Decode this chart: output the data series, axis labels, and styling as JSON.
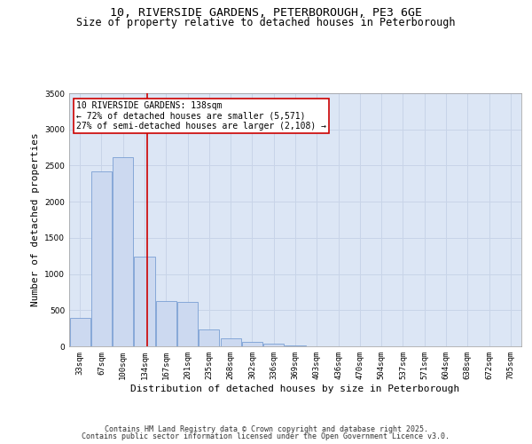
{
  "title_line1": "10, RIVERSIDE GARDENS, PETERBOROUGH, PE3 6GE",
  "title_line2": "Size of property relative to detached houses in Peterborough",
  "xlabel": "Distribution of detached houses by size in Peterborough",
  "ylabel": "Number of detached properties",
  "categories": [
    "33sqm",
    "67sqm",
    "100sqm",
    "134sqm",
    "167sqm",
    "201sqm",
    "235sqm",
    "268sqm",
    "302sqm",
    "336sqm",
    "369sqm",
    "403sqm",
    "436sqm",
    "470sqm",
    "504sqm",
    "537sqm",
    "571sqm",
    "604sqm",
    "638sqm",
    "672sqm",
    "705sqm"
  ],
  "values": [
    390,
    2420,
    2610,
    1240,
    630,
    620,
    230,
    110,
    60,
    40,
    15,
    5,
    0,
    0,
    0,
    0,
    0,
    0,
    0,
    0,
    0
  ],
  "bar_color": "#ccd9f0",
  "bar_edge_color": "#7a9fd4",
  "vline_x": 3.12,
  "vline_color": "#cc0000",
  "annotation_title": "10 RIVERSIDE GARDENS: 138sqm",
  "annotation_line1": "← 72% of detached houses are smaller (5,571)",
  "annotation_line2": "27% of semi-detached houses are larger (2,108) →",
  "annotation_box_facecolor": "#ffffff",
  "annotation_box_edgecolor": "#cc0000",
  "ylim": [
    0,
    3500
  ],
  "yticks": [
    0,
    500,
    1000,
    1500,
    2000,
    2500,
    3000,
    3500
  ],
  "grid_color": "#c8d4e8",
  "bg_color": "#dce6f5",
  "footer_line1": "Contains HM Land Registry data © Crown copyright and database right 2025.",
  "footer_line2": "Contains public sector information licensed under the Open Government Licence v3.0.",
  "title_fontsize": 9.5,
  "subtitle_fontsize": 8.5,
  "axis_label_fontsize": 8,
  "tick_fontsize": 6.5,
  "annotation_fontsize": 7,
  "footer_fontsize": 6
}
